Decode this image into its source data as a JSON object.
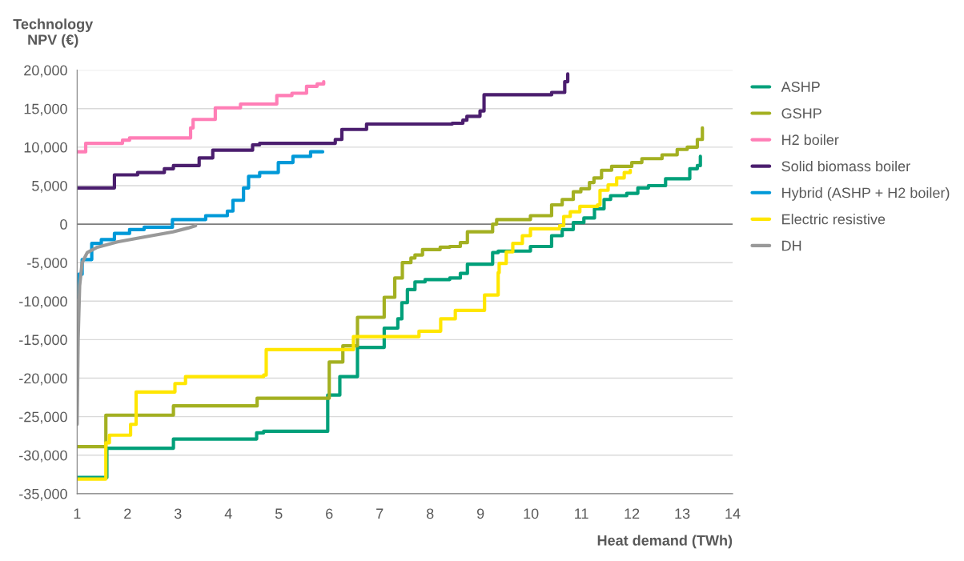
{
  "chart_data": {
    "type": "step",
    "xlabel": "Heat demand (TWh)",
    "ylabel": "Technology\nNPV (€)",
    "xlim": [
      1,
      14
    ],
    "ylim": [
      -35000,
      20000
    ],
    "xticks": [
      1,
      2,
      3,
      4,
      5,
      6,
      7,
      8,
      9,
      10,
      11,
      12,
      13,
      14
    ],
    "yticks": [
      {
        "value": -35000,
        "label": "-35,000"
      },
      {
        "value": -30000,
        "label": "-30,000"
      },
      {
        "value": -25000,
        "label": "-25,000"
      },
      {
        "value": -20000,
        "label": "-20,000"
      },
      {
        "value": -15000,
        "label": "-15,000"
      },
      {
        "value": -10000,
        "label": "-10,000"
      },
      {
        "value": -5000,
        "label": "-5,000"
      },
      {
        "value": 0,
        "label": "0"
      },
      {
        "value": 5000,
        "label": "5,000"
      },
      {
        "value": 10000,
        "label": "10,000"
      },
      {
        "value": 15000,
        "label": "15,000"
      },
      {
        "value": 20000,
        "label": "20,000"
      }
    ],
    "grid": "y",
    "legend": "right",
    "ref_lines": [
      {
        "axis": "y",
        "value": 0,
        "color": "#7f7f7f"
      }
    ],
    "series": [
      {
        "name": "ASHP",
        "color": "#00a07a",
        "x": [
          1.0,
          1.59,
          2.91,
          4.56,
          4.7,
          5.97,
          6.21,
          6.56,
          7.09,
          7.36,
          7.44,
          7.55,
          7.7,
          7.9,
          8.39,
          8.6,
          8.74,
          9.24,
          9.35,
          9.99,
          10.41,
          10.62,
          10.84,
          11.05,
          11.26,
          11.45,
          11.58,
          11.9,
          12.12,
          12.33,
          12.67,
          13.15,
          13.3,
          13.36
        ],
        "values": [
          -32900,
          -29100,
          -27900,
          -27100,
          -26900,
          -22200,
          -19800,
          -16000,
          -13500,
          -12300,
          -10200,
          -8500,
          -7500,
          -7200,
          -7000,
          -6400,
          -5200,
          -3700,
          -3500,
          -2900,
          -1500,
          -700,
          200,
          800,
          2000,
          3200,
          3700,
          4000,
          4700,
          5000,
          5900,
          7200,
          7600,
          8800
        ]
      },
      {
        "name": "GSHP",
        "color": "#a3b021",
        "x": [
          1.0,
          1.57,
          2.91,
          4.57,
          6.0,
          6.27,
          6.56,
          7.09,
          7.3,
          7.45,
          7.62,
          7.7,
          7.85,
          8.2,
          8.39,
          8.6,
          8.74,
          9.24,
          9.32,
          9.99,
          10.41,
          10.62,
          10.84,
          10.99,
          11.16,
          11.25,
          11.4,
          11.6,
          12.0,
          12.2,
          12.6,
          12.9,
          13.1,
          13.3,
          13.4
        ],
        "values": [
          -28900,
          -24800,
          -23600,
          -22600,
          -17900,
          -15800,
          -12100,
          -9500,
          -7000,
          -5000,
          -4400,
          -4000,
          -3300,
          -3000,
          -2900,
          -2400,
          -1000,
          0,
          600,
          1100,
          2500,
          3200,
          4200,
          4600,
          5400,
          6000,
          7000,
          7500,
          8000,
          8500,
          9000,
          9700,
          10000,
          11000,
          12500
        ]
      },
      {
        "name": "H2 boiler",
        "color": "#ff7eb6",
        "x": [
          1.0,
          1.17,
          1.9,
          2.04,
          3.25,
          3.3,
          3.74,
          4.24,
          4.96,
          5.26,
          5.55,
          5.76,
          5.89
        ],
        "values": [
          9400,
          10500,
          10900,
          11200,
          12500,
          13600,
          15100,
          15600,
          16700,
          17000,
          17900,
          18200,
          18500
        ]
      },
      {
        "name": "Solid biomass boiler",
        "color": "#4b1e6e",
        "x": [
          1.0,
          1.74,
          2.2,
          2.73,
          2.91,
          3.42,
          3.69,
          4.48,
          4.62,
          6.12,
          6.25,
          6.74,
          8.44,
          8.65,
          8.73,
          8.99,
          9.07,
          10.41,
          10.67,
          10.73
        ],
        "values": [
          4700,
          6400,
          6700,
          7200,
          7600,
          8600,
          9600,
          10300,
          10500,
          11000,
          12300,
          13000,
          13100,
          13500,
          14000,
          14700,
          16800,
          17100,
          18500,
          19500
        ]
      },
      {
        "name": "Hybrid (ASHP + H2 boiler)",
        "color": "#0099d8",
        "x": [
          1.0,
          1.03,
          1.1,
          1.29,
          1.48,
          1.74,
          2.04,
          2.33,
          2.89,
          3.55,
          3.98,
          4.09,
          4.3,
          4.4,
          4.62,
          4.99,
          5.28,
          5.63,
          5.87
        ],
        "values": [
          -9500,
          -6500,
          -4600,
          -2500,
          -2000,
          -1200,
          -700,
          -400,
          600,
          1100,
          1700,
          3100,
          4700,
          6200,
          6700,
          8000,
          8800,
          9400,
          9400
        ]
      },
      {
        "name": "Electric resistive",
        "color": "#ffe600",
        "x": [
          1.0,
          1.57,
          1.64,
          2.06,
          2.17,
          2.94,
          3.15,
          4.7,
          4.75,
          6.48,
          7.78,
          8.21,
          8.5,
          9.08,
          9.35,
          9.37,
          9.51,
          9.64,
          9.83,
          9.99,
          10.57,
          10.65,
          10.78,
          10.97,
          11.32,
          11.37,
          11.53,
          11.7,
          11.85,
          11.97
        ],
        "values": [
          -33100,
          -28400,
          -27400,
          -26000,
          -21800,
          -20700,
          -19800,
          -19600,
          -16300,
          -14600,
          -13900,
          -12300,
          -11200,
          -9200,
          -6300,
          -5100,
          -3600,
          -2500,
          -1500,
          -600,
          -200,
          1000,
          1600,
          2300,
          2500,
          4400,
          5100,
          6000,
          6700,
          7000
        ]
      },
      {
        "name": "DH",
        "color": "#999999",
        "type": "line",
        "x": [
          1.0,
          1.02,
          1.05,
          1.1,
          1.2,
          1.4,
          1.8,
          2.3,
          2.9,
          3.2,
          3.35
        ],
        "values": [
          -26000,
          -15000,
          -8000,
          -5000,
          -3700,
          -3000,
          -2300,
          -1700,
          -1000,
          -500,
          -200
        ]
      }
    ]
  }
}
